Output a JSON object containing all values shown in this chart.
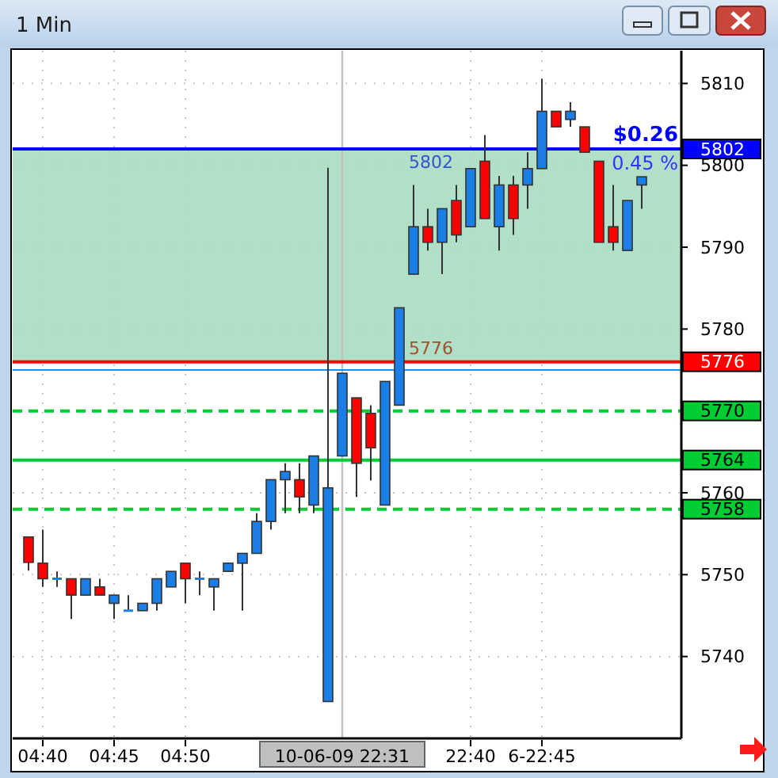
{
  "chart_data": {
    "type": "candlestick",
    "title": "1 Min",
    "categories": [
      null,
      "04:40",
      null,
      null,
      null,
      null,
      "04:45",
      null,
      null,
      null,
      null,
      "04:50",
      null,
      null,
      null,
      null,
      null,
      null,
      null,
      null,
      null,
      null,
      "10-06-09 22:31",
      null,
      null,
      null,
      null,
      null,
      null,
      null,
      null,
      "22:40",
      null,
      null,
      null,
      null,
      "6-22:45",
      null,
      null,
      null,
      null,
      null,
      null,
      null
    ],
    "ohlc": [
      [
        5754.6,
        5754.6,
        5750.5,
        5751.5
      ],
      [
        5751.4,
        5755.5,
        5748.5,
        5749.5
      ],
      [
        5749.5,
        5750.4,
        5748.5,
        5749.5
      ],
      [
        5749.5,
        5749.5,
        5744.6,
        5747.5
      ],
      [
        5747.5,
        5749.5,
        5747.5,
        5749.5
      ],
      [
        5748.5,
        5749.5,
        5747.5,
        5747.5
      ],
      [
        5746.5,
        5747.5,
        5744.6,
        5747.5
      ],
      [
        5745.6,
        5747.5,
        5745.6,
        5745.6
      ],
      [
        5745.6,
        5746.5,
        5745.6,
        5746.5
      ],
      [
        5746.5,
        5749.5,
        5745.6,
        5749.5
      ],
      [
        5748.5,
        5750.4,
        5748.5,
        5750.4
      ],
      [
        5751.4,
        5751.4,
        5746.5,
        5749.5
      ],
      [
        5749.5,
        5750.4,
        5747.5,
        5749.5
      ],
      [
        5748.5,
        5749.5,
        5745.6,
        5749.5
      ],
      [
        5750.4,
        5751.4,
        5750.4,
        5751.4
      ],
      [
        5751.4,
        5752.6,
        5745.6,
        5752.6
      ],
      [
        5752.6,
        5757.5,
        5752.6,
        5756.5
      ],
      [
        5756.5,
        5761.6,
        5755.5,
        5761.6
      ],
      [
        5761.6,
        5763.6,
        5757.5,
        5762.6
      ],
      [
        5761.6,
        5763.6,
        5757.5,
        5759.5
      ],
      [
        5758.5,
        5764.5,
        5757.5,
        5764.5
      ],
      [
        5734.5,
        5799.7,
        5734.5,
        5760.6
      ],
      [
        5764.5,
        5774.6,
        5764.5,
        5774.6
      ],
      [
        5771.6,
        5771.6,
        5759.5,
        5763.6
      ],
      [
        5769.7,
        5770.7,
        5761.5,
        5765.5
      ],
      [
        5758.5,
        5773.6,
        5758.5,
        5773.6
      ],
      [
        5770.7,
        5782.6,
        5770.7,
        5782.6
      ],
      [
        5786.7,
        5797.6,
        5786.7,
        5792.5
      ],
      [
        5792.5,
        5794.7,
        5789.6,
        5790.6
      ],
      [
        5790.6,
        5794.7,
        5786.7,
        5794.7
      ],
      [
        5795.7,
        5797.6,
        5790.6,
        5791.5
      ],
      [
        5792.5,
        5799.6,
        5792.5,
        5799.6
      ],
      [
        5800.5,
        5803.7,
        5793.5,
        5793.5
      ],
      [
        5792.5,
        5798.7,
        5789.6,
        5797.6
      ],
      [
        5797.6,
        5798.7,
        5791.5,
        5793.5
      ],
      [
        5797.6,
        5801.6,
        5794.7,
        5799.6
      ],
      [
        5799.6,
        5810.6,
        5799.6,
        5806.6
      ],
      [
        5806.6,
        5806.6,
        5804.7,
        5804.7
      ],
      [
        5805.6,
        5807.7,
        5804.7,
        5806.6
      ],
      [
        5804.7,
        5804.7,
        5801.6,
        5801.6
      ],
      [
        5800.5,
        5800.5,
        5790.6,
        5790.6
      ],
      [
        5792.5,
        5797.6,
        5789.6,
        5790.6
      ],
      [
        5789.6,
        5795.7,
        5789.6,
        5795.7
      ],
      [
        5797.6,
        5798.6,
        5794.7,
        5798.6
      ]
    ],
    "colors": [
      "#ff0000",
      "#ff0000",
      "#1a7ee6",
      "#ff0000",
      "#1a7ee6",
      "#ff0000",
      "#1a7ee6",
      "#1a7ee6",
      "#1a7ee6",
      "#1a7ee6",
      "#1a7ee6",
      "#ff0000",
      "#1a7ee6",
      "#1a7ee6",
      "#1a7ee6",
      "#1a7ee6",
      "#1a7ee6",
      "#1a7ee6",
      "#1a7ee6",
      "#ff0000",
      "#1a7ee6",
      "#1a7ee6",
      "#1a7ee6",
      "#ff0000",
      "#ff0000",
      "#1a7ee6",
      "#1a7ee6",
      "#1a7ee6",
      "#ff0000",
      "#1a7ee6",
      "#ff0000",
      "#1a7ee6",
      "#ff0000",
      "#1a7ee6",
      "#ff0000",
      "#1a7ee6",
      "#1a7ee6",
      "#ff0000",
      "#1a7ee6",
      "#ff0000",
      "#ff0000",
      "#ff0000",
      "#1a7ee6",
      "#1a7ee6"
    ],
    "ylim": [
      5730,
      5814
    ],
    "yticks": [
      5810,
      5800,
      5790,
      5780,
      5760,
      5750,
      5740
    ],
    "grid": true,
    "bands": [
      {
        "axis": "y",
        "from": 5776,
        "to": 5802,
        "color": "#a9dcc1"
      }
    ],
    "ref_lines": [
      {
        "axis": "x",
        "value": "10-06-09 22:31",
        "label": null,
        "color": "#c0c0c0"
      },
      {
        "axis": "y",
        "value": 5775,
        "label": null,
        "color": "#1e8fff"
      },
      {
        "axis": "y",
        "value": 5802,
        "label": "5802",
        "color": "#0000ff"
      },
      {
        "axis": "y",
        "value": 5776,
        "label": "5776",
        "color": "#ff0000"
      },
      {
        "axis": "y",
        "value": 5770,
        "label": "5770",
        "color": "#00cc33",
        "line_style": "dashed"
      },
      {
        "axis": "y",
        "value": 5764,
        "label": "5764",
        "color": "#00cc33"
      },
      {
        "axis": "y",
        "value": 5758,
        "label": "5758",
        "color": "#00cc33",
        "line_style": "dashed"
      }
    ],
    "annotations": [
      {
        "text": "$0.26",
        "y": 5802
      },
      {
        "text": "0.45 %",
        "y": 5802
      },
      {
        "text": "5802",
        "y": 5802
      },
      {
        "text": "5776",
        "y": 5776
      }
    ]
  }
}
